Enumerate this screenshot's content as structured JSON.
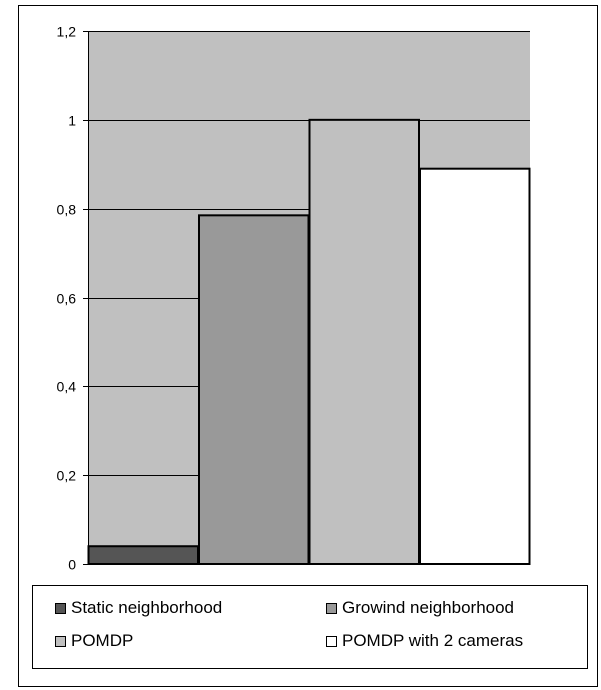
{
  "chart_data": {
    "type": "bar",
    "title": "",
    "xlabel": "",
    "ylabel": "",
    "ylim": [
      0,
      1.2
    ],
    "yticks": [
      "0",
      "0,2",
      "0,4",
      "0,6",
      "0,8",
      "1",
      "1,2"
    ],
    "grid": true,
    "legend_position": "bottom",
    "series": [
      {
        "name": "Static neighborhood",
        "value": 0.04,
        "color": "#555555"
      },
      {
        "name": "Growind neighborhood",
        "value": 0.785,
        "color": "#999999"
      },
      {
        "name": "POMDP",
        "value": 1.0,
        "color": "#c0c0c0"
      },
      {
        "name": "POMDP with 2 cameras",
        "value": 0.89,
        "color": "#ffffff"
      }
    ],
    "plot_background": "#c0c0c0"
  }
}
